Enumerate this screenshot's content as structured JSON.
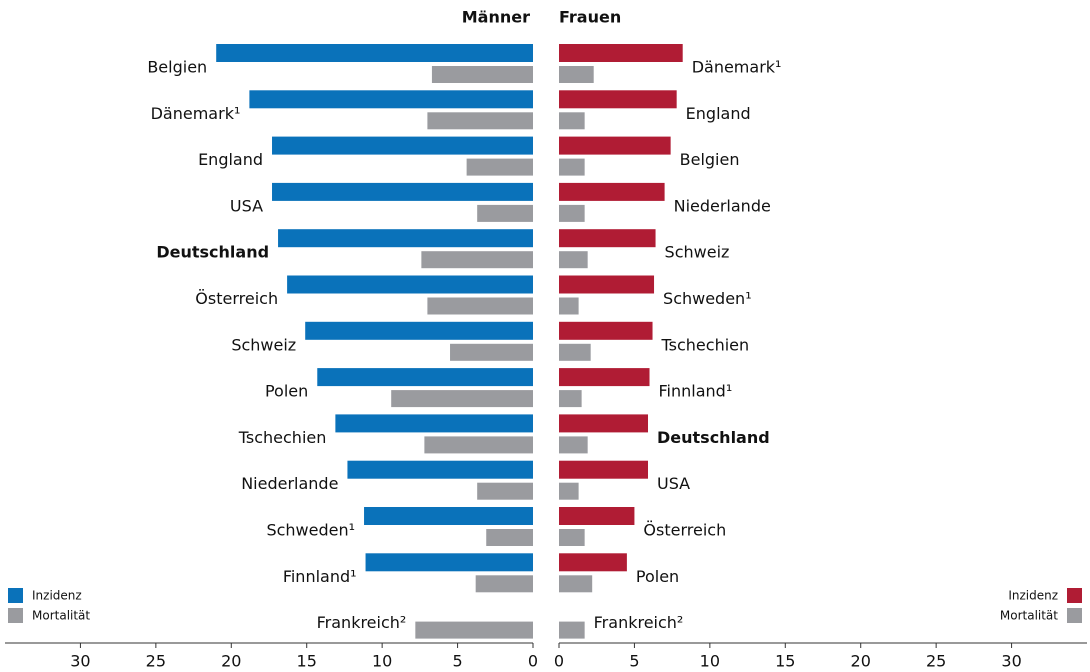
{
  "chart_data": [
    {
      "type": "bar",
      "orientation": "horizontal",
      "x_inverted": true,
      "title": "Männer",
      "highlight": "Deutschland",
      "legend": "bottom left",
      "categories": [
        "Belgien",
        "Dänemark¹",
        "England",
        "USA",
        "Deutschland",
        "Österreich",
        "Schweiz",
        "Polen",
        "Tschechien",
        "Niederlande",
        "Schweden¹",
        "Finnland¹",
        "Frankreich²"
      ],
      "series": [
        {
          "name": "Inzidenz",
          "color": "#0a72ba",
          "values": [
            21.0,
            18.8,
            17.3,
            17.3,
            16.9,
            16.3,
            15.1,
            14.3,
            13.1,
            12.3,
            11.2,
            11.1,
            null
          ]
        },
        {
          "name": "Mortalität",
          "color": "#9a9b9f",
          "values": [
            6.7,
            7.0,
            4.4,
            3.7,
            7.4,
            7.0,
            5.5,
            9.4,
            7.2,
            3.7,
            3.1,
            3.8,
            7.8
          ]
        }
      ],
      "xlim": [
        0,
        35
      ],
      "xticks": [
        0,
        5,
        10,
        15,
        20,
        25,
        30
      ]
    },
    {
      "type": "bar",
      "orientation": "horizontal",
      "x_inverted": false,
      "title": "Frauen",
      "highlight": "Deutschland",
      "legend": "bottom right",
      "categories": [
        "Dänemark¹",
        "England",
        "Belgien",
        "Niederlande",
        "Schweiz",
        "Schweden¹",
        "Tschechien",
        "Finnland¹",
        "Deutschland",
        "USA",
        "Österreich",
        "Polen",
        "Frankreich²"
      ],
      "series": [
        {
          "name": "Inzidenz",
          "color": "#b01c34",
          "values": [
            8.2,
            7.8,
            7.4,
            7.0,
            6.4,
            6.3,
            6.2,
            6.0,
            5.9,
            5.9,
            5.0,
            4.5,
            null
          ]
        },
        {
          "name": "Mortalität",
          "color": "#9a9b9f",
          "values": [
            2.3,
            1.7,
            1.7,
            1.7,
            1.9,
            1.3,
            2.1,
            1.5,
            1.9,
            1.3,
            1.7,
            2.2,
            1.7
          ]
        }
      ],
      "xlim": [
        0,
        35
      ],
      "xticks": [
        0,
        5,
        10,
        15,
        20,
        25,
        30
      ]
    }
  ]
}
